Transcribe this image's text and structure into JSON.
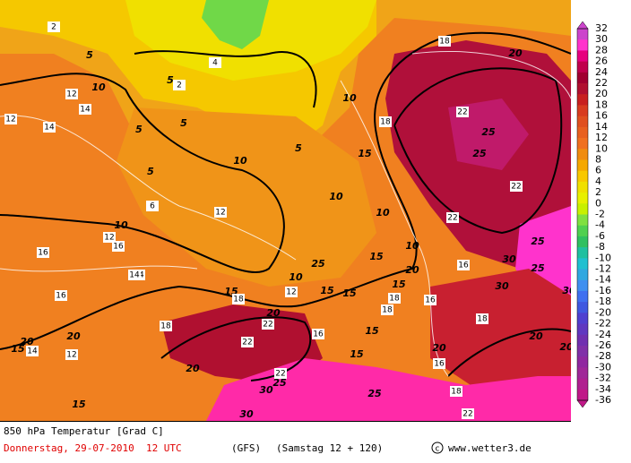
{
  "map": {
    "scale": {
      "values": [
        32,
        30,
        28,
        26,
        24,
        22,
        20,
        18,
        16,
        14,
        12,
        10,
        8,
        6,
        4,
        2,
        0,
        -2,
        -4,
        -6,
        -8,
        -10,
        -12,
        -14,
        -16,
        -18,
        -20,
        -22,
        -24,
        -26,
        -28,
        -30,
        -32,
        -34,
        -36
      ],
      "colors": [
        "#cc44cc",
        "#ff33cc",
        "#e6007e",
        "#c0004c",
        "#a00030",
        "#b01030",
        "#c82020",
        "#d83c20",
        "#e05020",
        "#e86020",
        "#f07020",
        "#f08c10",
        "#f5a800",
        "#f8c800",
        "#f0e000",
        "#e8f000",
        "#c8f000",
        "#80e040",
        "#50d050",
        "#30c060",
        "#20c0a0",
        "#20c0d0",
        "#30a8e0",
        "#4090f0",
        "#4070f0",
        "#4058e0",
        "#5040d0",
        "#6038c0",
        "#7030b0",
        "#8030a8",
        "#9028a0",
        "#a02898",
        "#b02090",
        "#c01888"
      ]
    },
    "contour_labels": [
      5,
      5,
      10,
      5,
      10,
      5,
      5,
      10,
      10,
      5,
      10,
      15,
      10,
      10,
      10,
      15,
      15,
      20,
      25,
      25,
      20,
      20,
      15,
      15,
      25,
      30,
      30,
      25,
      20,
      15,
      20,
      15,
      15,
      20,
      30,
      25,
      30,
      20,
      25,
      30,
      15,
      15,
      20,
      25,
      20
    ],
    "thin_labels": [
      2,
      2,
      4,
      12,
      14,
      14,
      12,
      16,
      12,
      14,
      16,
      16,
      14,
      6,
      12,
      16,
      18,
      22,
      22,
      22,
      18,
      18,
      16,
      22,
      12,
      16,
      18,
      16,
      22,
      22,
      18,
      18,
      22,
      18,
      16,
      12,
      14,
      18
    ]
  },
  "footer": {
    "title": "850 hPa Temperatur [Grad C]",
    "date": "Donnerstag, 29-07-2010  12 UTC",
    "model": "(GFS)",
    "run": "(Samstag 12 + 120)",
    "site": "www.wetter3.de"
  }
}
